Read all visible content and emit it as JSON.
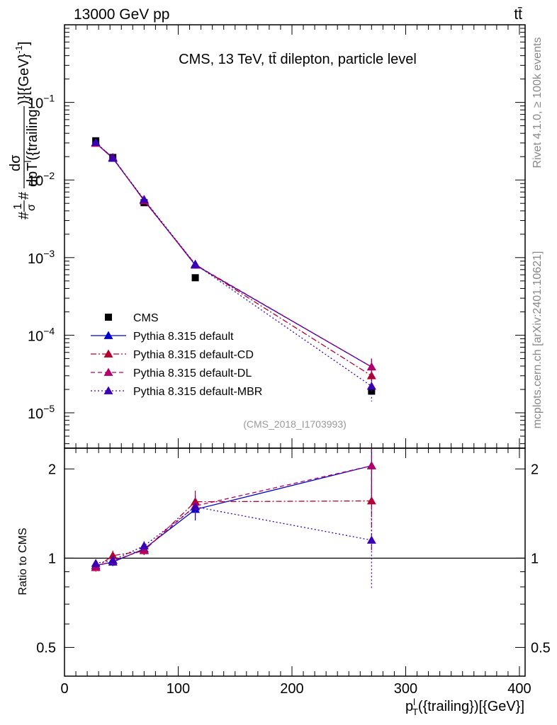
{
  "header": {
    "left_label": "13000 GeV pp",
    "right_label": "tt̄"
  },
  "side_labels": {
    "rivet": "Rivet 4.1.0, ≥ 100k events",
    "mcplots": "mcplots.cern.ch [arXiv:2401.10621]"
  },
  "colors": {
    "cms": "#000000",
    "default": "#0000cc",
    "cd": "#b3002d",
    "dl": "#b3006b",
    "mbr": "#3a00b3"
  },
  "chart_data": [
    {
      "panel": "main",
      "type": "line",
      "title": "CMS, 13 TeV, tt̄ dilepton, particle level",
      "watermark": "(CMS_2018_I1703993)",
      "ylabel": "#1/σ# dσ / dp_T^l({trailing}) [{GeV}^-1]",
      "ylabel_parts": {
        "frac_num": "1",
        "frac_den": "σ",
        "hash_left": "#",
        "hash_right": "#",
        "num": "dσ",
        "den": "dpT",
        "den_sup": "l",
        "den_sub": "T",
        "den_tail": "({trailing",
        "tail": ")}[{GeV}",
        "tail_sup": "-1",
        "tail_close": "]"
      },
      "yscale": "log",
      "ylim": [
        3.5e-06,
        1.0
      ],
      "xlim": [
        0,
        405
      ],
      "yticks": [
        {
          "value": 1e-05,
          "base": "10",
          "exp": "−5"
        },
        {
          "value": 0.0001,
          "base": "10",
          "exp": "−4"
        },
        {
          "value": 0.001,
          "base": "10",
          "exp": "−3"
        },
        {
          "value": 0.01,
          "base": "10",
          "exp": "−2"
        },
        {
          "value": 0.1,
          "base": "10",
          "exp": "−1"
        }
      ],
      "x": [
        27.5,
        42.5,
        70,
        115,
        270
      ],
      "series": [
        {
          "name": "CMS",
          "key": "cms",
          "style": "square",
          "values": [
            0.032,
            0.0195,
            0.0051,
            0.00055,
            1.9e-05
          ]
        },
        {
          "name": "Pythia 8.315 default",
          "key": "default",
          "style": "solid",
          "values": [
            0.03,
            0.019,
            0.0055,
            0.0008,
            3.9e-05
          ],
          "err": [
            0.001,
            0.0007,
            0.0003,
            8e-05,
            1.1e-05
          ]
        },
        {
          "name": "Pythia 8.315 default-CD",
          "key": "cd",
          "style": "dashdot",
          "values": [
            0.0298,
            0.0195,
            0.0054,
            0.00082,
            3e-05
          ],
          "err": [
            0.001,
            0.0007,
            0.0003,
            8e-05,
            8e-06
          ]
        },
        {
          "name": "Pythia 8.315 default-DL",
          "key": "dl",
          "style": "dash",
          "values": [
            0.0297,
            0.0193,
            0.0054,
            0.00081,
            3.9e-05
          ],
          "err": [
            0.001,
            0.0007,
            0.0003,
            8e-05,
            1.1e-05
          ]
        },
        {
          "name": "Pythia 8.315 default-MBR",
          "key": "mbr",
          "style": "dot",
          "values": [
            0.0305,
            0.0192,
            0.0056,
            0.00082,
            2.2e-05
          ],
          "err": [
            0.001,
            0.0007,
            0.0003,
            8e-05,
            8e-06
          ]
        }
      ]
    },
    {
      "panel": "ratio",
      "type": "line",
      "ylabel": "Ratio to CMS",
      "xlabel": "p_T^l({trailing})[{GeV}]",
      "xlabel_parts": {
        "p": "p",
        "sub": "T",
        "sup": "l",
        "tail": "({trailing})[{GeV}]"
      },
      "yscale": "log",
      "ylim": [
        0.4,
        2.35
      ],
      "xlim": [
        0,
        405
      ],
      "xticks": [
        {
          "value": 0,
          "label": "0"
        },
        {
          "value": 100,
          "label": "100"
        },
        {
          "value": 200,
          "label": "200"
        },
        {
          "value": 300,
          "label": "300"
        },
        {
          "value": 400,
          "label": "400"
        }
      ],
      "yticks": [
        {
          "value": 0.5,
          "label": "0.5"
        },
        {
          "value": 1,
          "label": "1"
        },
        {
          "value": 2,
          "label": "2"
        }
      ],
      "reference_line": 1,
      "x": [
        27.5,
        42.5,
        70,
        115,
        270
      ],
      "series": [
        {
          "name": "Pythia 8.315 default",
          "key": "default",
          "style": "solid",
          "values": [
            0.945,
            0.97,
            1.075,
            1.46,
            2.05
          ],
          "err": [
            0.03,
            0.03,
            0.04,
            0.12,
            0.5
          ]
        },
        {
          "name": "Pythia 8.315 default-CD",
          "key": "cd",
          "style": "dashdot",
          "values": [
            0.93,
            1.02,
            1.06,
            1.55,
            1.56
          ],
          "err": [
            0.03,
            0.04,
            0.04,
            0.14,
            0.5
          ]
        },
        {
          "name": "Pythia 8.315 default-DL",
          "key": "dl",
          "style": "dash",
          "values": [
            0.935,
            0.98,
            1.065,
            1.5,
            2.05
          ],
          "err": [
            0.03,
            0.03,
            0.04,
            0.13,
            0.6
          ]
        },
        {
          "name": "Pythia 8.315 default-MBR",
          "key": "mbr",
          "style": "dot",
          "values": [
            0.96,
            0.985,
            1.1,
            1.49,
            1.15
          ],
          "err": [
            0.03,
            0.03,
            0.04,
            0.13,
            0.36
          ]
        }
      ]
    }
  ]
}
